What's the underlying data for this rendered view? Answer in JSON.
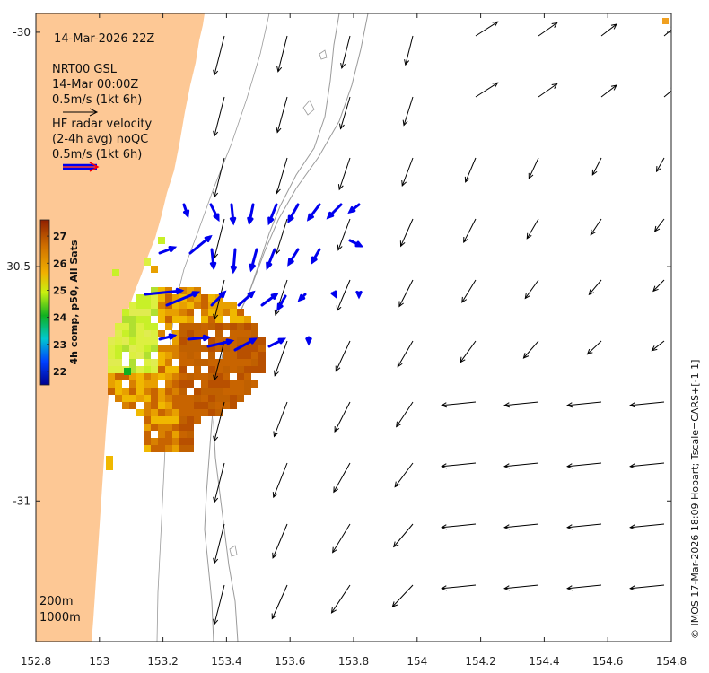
{
  "title": "14-Mar-2026 22Z",
  "model": {
    "name": "NRT00 GSL",
    "time": "14-Mar 00:00Z",
    "scale": "0.5m/s (1kt 6h)"
  },
  "radar": {
    "line1": "HF radar velocity",
    "line2": "(2-4h avg) noQC",
    "scale": "0.5m/s (1kt 6h)"
  },
  "colorbar": {
    "label": "4h comp, p50, All Sats",
    "ticks": [
      "27",
      "26",
      "25",
      "24",
      "23",
      "22"
    ],
    "range": [
      21.5,
      27.6
    ]
  },
  "isobaths": [
    "200m",
    "1000m"
  ],
  "credit": "© IMOS 17-Mar-2026 18:09 Hobart; Tscale=CARS+[-1 1]",
  "axes": {
    "x_ticks": [
      "152.8",
      "153",
      "153.2",
      "153.4",
      "153.6",
      "153.8",
      "154",
      "154.2",
      "154.4",
      "154.6",
      "154.8"
    ],
    "y_ticks": [
      "-30",
      "-30.5",
      "-31"
    ],
    "xlim": [
      152.8,
      154.8
    ],
    "ylim": [
      -31.3,
      -29.96
    ]
  },
  "colors": {
    "land": "#fdc895",
    "radar_arrow": "#0000ee",
    "model_arrow": "#000000",
    "isobath": "#9a9a9a"
  }
}
